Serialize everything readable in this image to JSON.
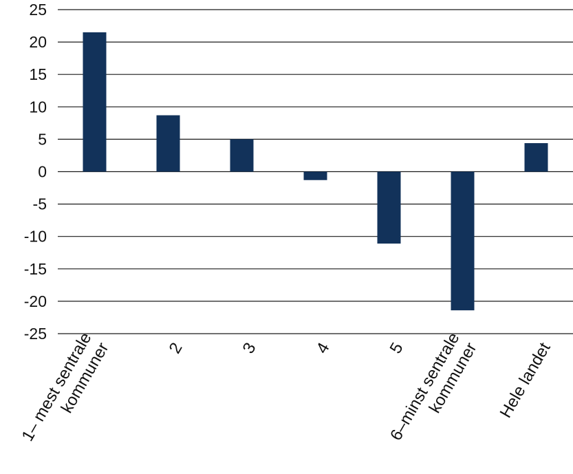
{
  "chart_data": {
    "type": "bar",
    "title": "",
    "xlabel": "",
    "ylabel": "",
    "categories": [
      [
        "1– mest sentrale",
        "kommuner"
      ],
      [
        "2"
      ],
      [
        "3"
      ],
      [
        "4"
      ],
      [
        "5"
      ],
      [
        "6–minst sentrale",
        "kommuner"
      ],
      [
        "Hele landet"
      ]
    ],
    "series": [
      {
        "values": [
          21.5,
          8.7,
          5.0,
          -1.3,
          -11.1,
          -21.4,
          4.4
        ]
      }
    ],
    "ylim": [
      -25,
      25
    ],
    "yticks": [
      25,
      20,
      15,
      10,
      5,
      0,
      -5,
      -10,
      -15,
      -20,
      -25
    ],
    "grid": true,
    "legend": "none",
    "bar_color": "#12325a",
    "grid_color": "#1a1a1a"
  }
}
